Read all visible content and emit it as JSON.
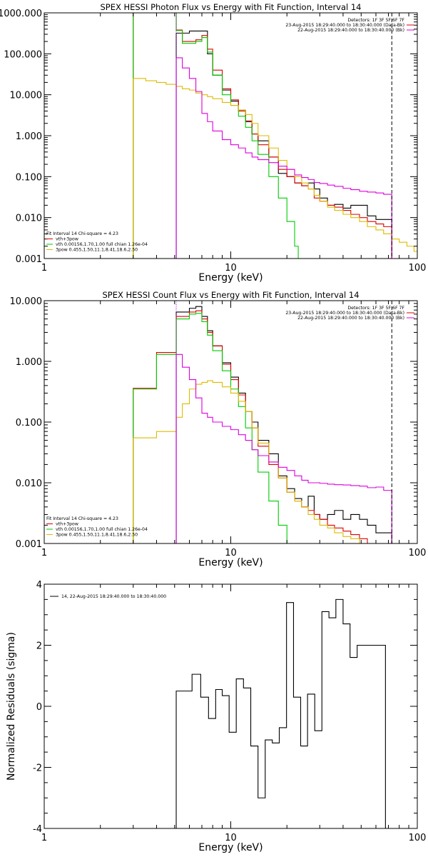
{
  "chart_data": [
    {
      "type": "line",
      "title": "SPEX HESSI Photon Flux vs Energy with Fit Function, Interval 14",
      "xlabel": "Energy (keV)",
      "ylabel": "",
      "xscale": "log",
      "yscale": "log",
      "xlim": [
        1,
        100
      ],
      "ylim": [
        0.001,
        1000
      ],
      "x_ticks": [
        1,
        10,
        100
      ],
      "x_tick_labels": [
        "1",
        "10",
        "100"
      ],
      "y_ticks": [
        0.001,
        0.01,
        0.1,
        1,
        10,
        100,
        1000
      ],
      "y_tick_labels": [
        "0.001",
        "0.010",
        "0.100",
        "1.000",
        "10.000",
        "100.000",
        "1000.000"
      ],
      "header_lines": [
        "Detectors: 1F 3F 5F 6F 7F",
        "23-Aug-2015 18:29:40.000 to 18:30:40.000 (Data-Bk)",
        "22-Aug-2015 18:29:40.000 to 18:30:40.000 (Bk)"
      ],
      "legend_lines": [
        "Fit Interval 14    Chi-square = 4.23",
        "vth+3pow",
        "vth 0.00156,1.70,1.00  full chian 1.26e-04",
        "3pow 0.455,1.50,11.1,8.41,18.6,2.50"
      ],
      "vlines": [
        5.1,
        73
      ],
      "series": [
        {
          "name": "Data-Bk",
          "color": "#000000",
          "x": [
            5.1,
            5.5,
            6.0,
            6.5,
            7.0,
            7.5,
            8.0,
            9.0,
            10.0,
            11.0,
            12.0,
            13.0,
            14.0,
            16.0,
            18.0,
            20.0,
            22.0,
            24.0,
            26.0,
            28.0,
            30.0,
            33.0,
            36.0,
            40.0,
            44.0,
            49.0,
            54.0,
            60.0,
            66.0,
            73.0
          ],
          "y": [
            320,
            320,
            360,
            360,
            360,
            100,
            30,
            13,
            7,
            4.2,
            2.2,
            1.1,
            0.75,
            0.3,
            0.12,
            0.1,
            0.07,
            0.06,
            0.07,
            0.05,
            0.03,
            0.02,
            0.021,
            0.017,
            0.02,
            0.02,
            0.011,
            0.009,
            0.009,
            0.009
          ]
        },
        {
          "name": "vth+3pow",
          "color": "#dd0000",
          "x": [
            3.0,
            3.5,
            4.0,
            4.5,
            5.1,
            5.5,
            6.0,
            6.5,
            7.0,
            7.5,
            8.0,
            9.0,
            10.0,
            11.0,
            12.0,
            13.0,
            14.0,
            16.0,
            18.0,
            20.0,
            22.0,
            24.0,
            26.0,
            28.0,
            30.0,
            33.0,
            36.0,
            40.0,
            44.0,
            49.0,
            54.0,
            60.0,
            66.0,
            73.0
          ],
          "y": [
            1000,
            1000,
            1000,
            1000,
            380,
            200,
            200,
            220,
            280,
            130,
            40,
            14,
            7.5,
            4.0,
            2.3,
            1.1,
            0.6,
            0.3,
            0.15,
            0.1,
            0.07,
            0.06,
            0.05,
            0.03,
            0.025,
            0.02,
            0.018,
            0.015,
            0.012,
            0.01,
            0.008,
            0.007,
            0.006,
            0.006
          ]
        },
        {
          "name": "vth",
          "color": "#00cc00",
          "x": [
            3.0,
            3.5,
            4.0,
            4.5,
            5.1,
            5.5,
            6.0,
            6.5,
            7.0,
            7.5,
            8.0,
            9.0,
            10.0,
            11.0,
            12.0,
            13.0,
            14.0,
            16.0,
            18.0,
            20.0,
            22.0,
            23.0
          ],
          "y": [
            1000,
            1000,
            1000,
            1000,
            370,
            180,
            180,
            200,
            250,
            110,
            30,
            10,
            5.5,
            3.0,
            1.6,
            0.75,
            0.35,
            0.1,
            0.03,
            0.008,
            0.002,
            0.001
          ]
        },
        {
          "name": "3pow",
          "color": "#ddbb00",
          "x": [
            3.0,
            3.5,
            4.0,
            4.5,
            5.1,
            5.5,
            6.0,
            6.5,
            7.0,
            7.5,
            8.0,
            9.0,
            10.0,
            11.0,
            12.0,
            13.0,
            14.0,
            16.0,
            18.0,
            20.0,
            22.0,
            24.0,
            26.0,
            28.0,
            30.0,
            33.0,
            36.0,
            40.0,
            44.0,
            49.0,
            54.0,
            60.0,
            66.0,
            73.0,
            80.0,
            88.0,
            96.0,
            100.0
          ],
          "y": [
            25,
            22,
            20,
            18,
            16,
            14,
            13,
            11,
            10,
            9,
            8,
            6.5,
            5.5,
            4.2,
            3.3,
            2.0,
            1.0,
            0.5,
            0.25,
            0.15,
            0.1,
            0.07,
            0.05,
            0.035,
            0.025,
            0.018,
            0.015,
            0.012,
            0.01,
            0.008,
            0.006,
            0.005,
            0.004,
            0.003,
            0.0025,
            0.002,
            0.0015,
            0.0012
          ]
        },
        {
          "name": "Bk",
          "color": "#dd00dd",
          "x": [
            5.1,
            5.5,
            6.0,
            6.5,
            7.0,
            7.5,
            8.0,
            9.0,
            10.0,
            11.0,
            12.0,
            13.0,
            14.0,
            16.0,
            18.0,
            20.0,
            22.0,
            24.0,
            26.0,
            28.0,
            30.0,
            33.0,
            36.0,
            40.0,
            44.0,
            49.0,
            54.0,
            60.0,
            66.0,
            73.0
          ],
          "y": [
            80,
            45,
            25,
            12,
            3.5,
            2.2,
            1.3,
            0.8,
            0.6,
            0.5,
            0.38,
            0.3,
            0.26,
            0.22,
            0.18,
            0.15,
            0.11,
            0.095,
            0.085,
            0.072,
            0.068,
            0.062,
            0.058,
            0.052,
            0.048,
            0.044,
            0.042,
            0.04,
            0.037,
            0.033
          ]
        }
      ]
    },
    {
      "type": "line",
      "title": "SPEX HESSI Count Flux vs Energy with Fit Function, Interval 14",
      "xlabel": "Energy (keV)",
      "ylabel": "",
      "xscale": "log",
      "yscale": "log",
      "xlim": [
        1,
        100
      ],
      "ylim": [
        0.001,
        10
      ],
      "x_ticks": [
        1,
        10,
        100
      ],
      "x_tick_labels": [
        "1",
        "10",
        "100"
      ],
      "y_ticks": [
        0.001,
        0.01,
        0.1,
        1,
        10
      ],
      "y_tick_labels": [
        "0.001",
        "0.010",
        "0.100",
        "1.000",
        "10.000"
      ],
      "header_lines": [
        "Detectors: 1F 3F 5F 6F 7F",
        "23-Aug-2015 18:29:40.000 to 18:30:40.000 (Data-Bk)",
        "22-Aug-2015 18:29:40.000 to 18:30:40.000 (Bk)"
      ],
      "legend_lines": [
        "Fit Interval 14    Chi-square = 4.23",
        "vth+3pow",
        "vth 0.00156,1.70,1.00  full chian 1.26e-04",
        "3pow 0.455,1.50,11.1,8.41,18.6,2.50"
      ],
      "vlines": [
        5.1,
        73
      ],
      "series": [
        {
          "name": "Data-Bk",
          "color": "#000000",
          "x": [
            5.1,
            5.5,
            6.0,
            6.5,
            7.0,
            7.5,
            8.0,
            9.0,
            10.0,
            11.0,
            12.0,
            13.0,
            14.0,
            16.0,
            18.0,
            20.0,
            22.0,
            24.0,
            26.0,
            28.0,
            30.0,
            33.0,
            36.0,
            40.0,
            44.0,
            49.0,
            54.0,
            60.0,
            66.0,
            73.0
          ],
          "y": [
            6.5,
            6.5,
            7.5,
            8,
            5.5,
            3.2,
            1.8,
            0.95,
            0.55,
            0.3,
            0.15,
            0.1,
            0.05,
            0.03,
            0.013,
            0.008,
            0.0055,
            0.004,
            0.006,
            0.003,
            0.0025,
            0.003,
            0.0035,
            0.0025,
            0.003,
            0.0025,
            0.002,
            0.0015,
            0.0015,
            0.0015
          ]
        },
        {
          "name": "vth+3pow",
          "color": "#dd0000",
          "x": [
            3.0,
            3.5,
            4.0,
            4.5,
            5.1,
            5.5,
            6.0,
            6.5,
            7.0,
            7.5,
            8.0,
            9.0,
            10.0,
            11.0,
            12.0,
            13.0,
            14.0,
            16.0,
            18.0,
            20.0,
            22.0,
            24.0,
            26.0,
            28.0,
            30.0,
            33.0,
            36.0,
            40.0,
            44.0,
            49.0,
            54.0,
            60.0,
            66.0,
            73.0
          ],
          "y": [
            0.36,
            0.36,
            1.4,
            1.4,
            5.5,
            5.5,
            6.5,
            6.8,
            5,
            3,
            1.8,
            0.9,
            0.5,
            0.28,
            0.15,
            0.08,
            0.04,
            0.02,
            0.012,
            0.007,
            0.005,
            0.004,
            0.0035,
            0.003,
            0.0025,
            0.002,
            0.0018,
            0.0016,
            0.0014,
            0.0012,
            0.001,
            0.001,
            0.001,
            0.001
          ]
        },
        {
          "name": "vth",
          "color": "#00cc00",
          "x": [
            3.0,
            3.5,
            4.0,
            4.5,
            5.1,
            5.5,
            6.0,
            6.5,
            7.0,
            7.5,
            8.0,
            9.0,
            10.0,
            11.0,
            12.0,
            13.0,
            14.0,
            16.0,
            18.0,
            20.0,
            21.0
          ],
          "y": [
            0.35,
            0.35,
            1.3,
            1.3,
            5.0,
            5.0,
            6.0,
            6.2,
            4.5,
            2.7,
            1.5,
            0.7,
            0.35,
            0.18,
            0.08,
            0.035,
            0.015,
            0.005,
            0.002,
            0.001,
            0.001
          ]
        },
        {
          "name": "3pow",
          "color": "#ddbb00",
          "x": [
            3.0,
            3.5,
            4.0,
            4.5,
            5.1,
            5.5,
            6.0,
            6.5,
            7.0,
            7.5,
            8.0,
            9.0,
            10.0,
            11.0,
            12.0,
            13.0,
            14.0,
            16.0,
            18.0,
            20.0,
            22.0,
            24.0,
            26.0,
            28.0,
            30.0,
            33.0,
            36.0,
            40.0,
            44.0,
            49.0,
            54.0,
            60.0
          ],
          "y": [
            0.055,
            0.055,
            0.07,
            0.07,
            0.12,
            0.2,
            0.35,
            0.42,
            0.45,
            0.48,
            0.45,
            0.38,
            0.3,
            0.22,
            0.15,
            0.08,
            0.045,
            0.022,
            0.012,
            0.007,
            0.005,
            0.004,
            0.003,
            0.0025,
            0.002,
            0.0018,
            0.0015,
            0.0013,
            0.0012,
            0.001,
            0.001,
            0.001
          ]
        },
        {
          "name": "Bk",
          "color": "#dd00dd",
          "x": [
            5.1,
            5.5,
            6.0,
            6.5,
            7.0,
            7.5,
            8.0,
            9.0,
            10.0,
            11.0,
            12.0,
            13.0,
            14.0,
            16.0,
            18.0,
            20.0,
            22.0,
            24.0,
            26.0,
            28.0,
            30.0,
            33.0,
            36.0,
            40.0,
            44.0,
            49.0,
            54.0,
            60.0,
            66.0,
            73.0
          ],
          "y": [
            1.3,
            0.8,
            0.5,
            0.25,
            0.14,
            0.12,
            0.1,
            0.085,
            0.075,
            0.062,
            0.05,
            0.035,
            0.028,
            0.022,
            0.018,
            0.016,
            0.013,
            0.011,
            0.01,
            0.01,
            0.0098,
            0.0095,
            0.0093,
            0.0092,
            0.009,
            0.0088,
            0.0083,
            0.0085,
            0.0075,
            0.0065
          ]
        }
      ]
    },
    {
      "type": "line",
      "title": "",
      "xlabel": "Energy (keV)",
      "ylabel": "Normalized Residuals (sigma)",
      "xscale": "log",
      "yscale": "linear",
      "xlim": [
        1,
        100
      ],
      "ylim": [
        -4,
        4
      ],
      "x_ticks": [
        1,
        10,
        100
      ],
      "x_tick_labels": [
        "1",
        "10",
        "100"
      ],
      "y_ticks": [
        -4,
        -2,
        0,
        2,
        4
      ],
      "y_tick_labels": [
        "-4",
        "-2",
        "0",
        "2",
        "4"
      ],
      "legend_lines": [
        "14, 22-Aug-2015 18:29:40.000 to 18:30:40.000"
      ],
      "series": [
        {
          "name": "14, 22-Aug-2015 18:29:40.000 to 18:30:40.000",
          "color": "#000000",
          "x": [
            5.1,
            5.6,
            6.2,
            6.9,
            7.6,
            8.3,
            9.0,
            9.8,
            10.7,
            11.7,
            12.8,
            14.0,
            15.3,
            16.7,
            18.2,
            19.9,
            21.7,
            23.7,
            25.8,
            28.2,
            30.8,
            33.6,
            36.6,
            40.0,
            43.6,
            47.6,
            51.9,
            56.7,
            61.9,
            67.5
          ],
          "y": [
            0.5,
            0.5,
            1.05,
            0.3,
            -0.4,
            0.55,
            0.35,
            -0.85,
            0.9,
            0.6,
            -1.3,
            -3.0,
            -1.1,
            -1.2,
            -0.7,
            3.4,
            0.3,
            -1.3,
            0.4,
            -0.8,
            3.1,
            2.9,
            3.5,
            2.7,
            1.6,
            2.0,
            2.0,
            2.0,
            2.0,
            2.0
          ]
        }
      ]
    }
  ]
}
